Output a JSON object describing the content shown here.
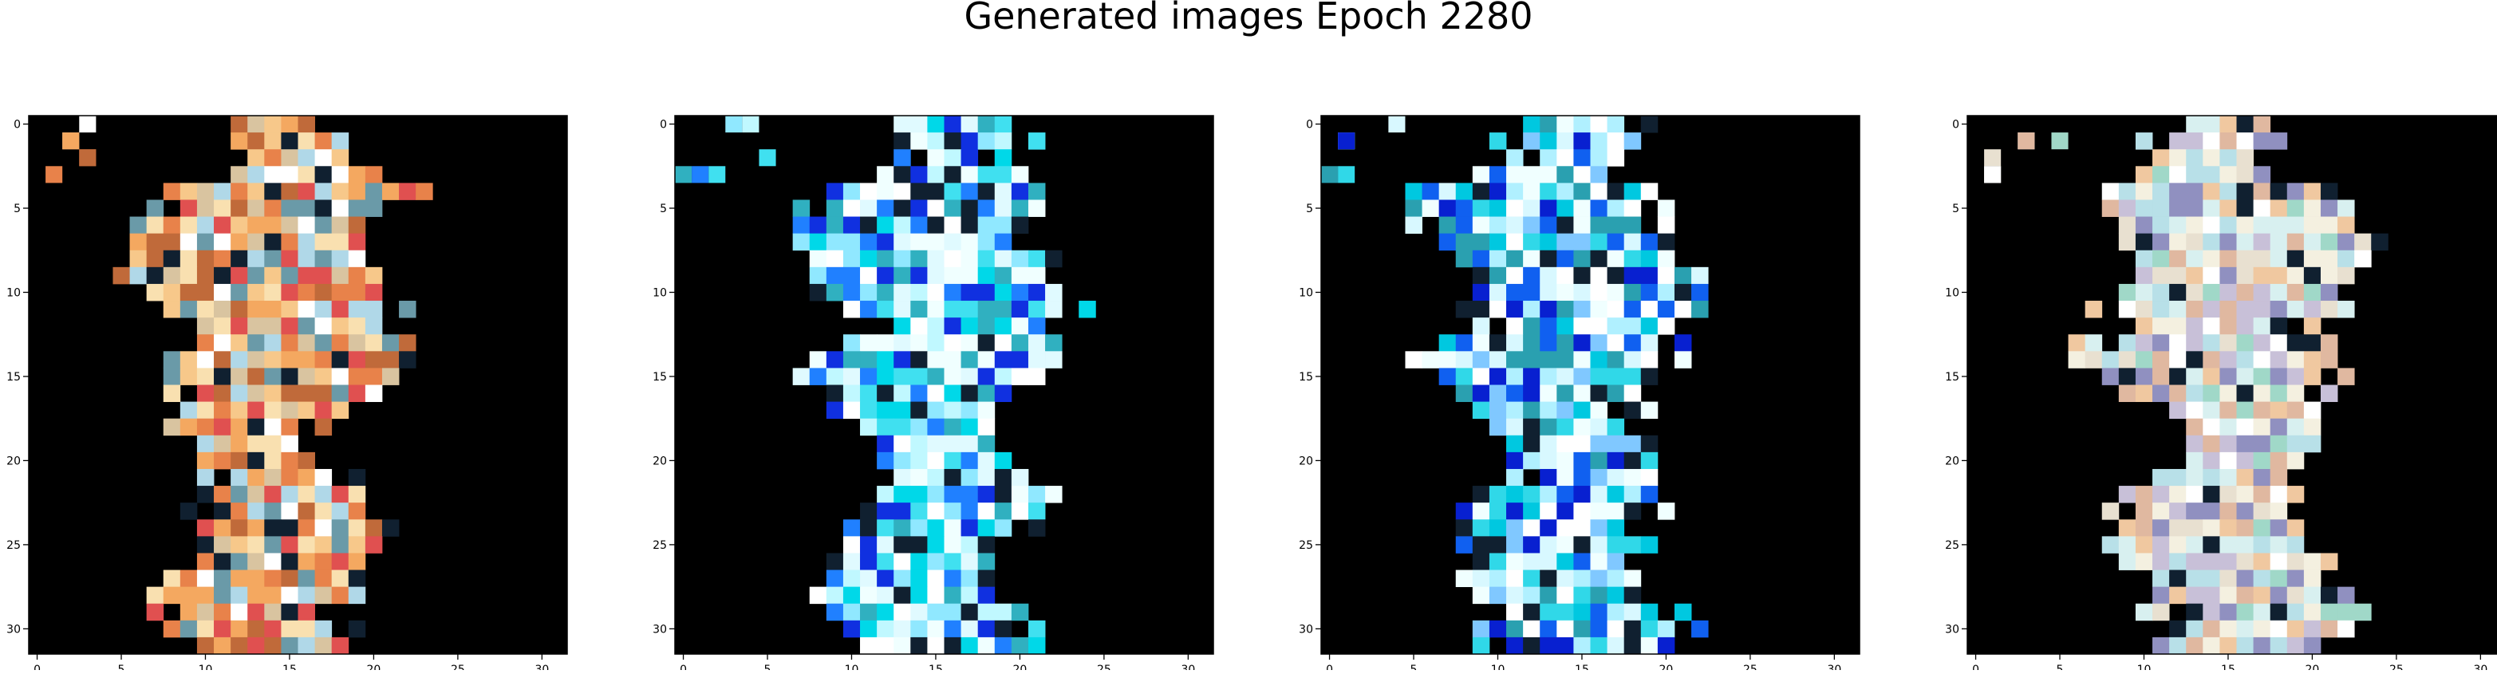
{
  "figure": {
    "title": "Generated images Epoch 2280"
  },
  "chart_data": [
    {
      "type": "heatmap",
      "title": "",
      "xlim": [
        -0.5,
        31.5
      ],
      "ylim": [
        31.5,
        -0.5
      ],
      "x_ticks": [
        0,
        5,
        10,
        15,
        20,
        25,
        30
      ],
      "y_ticks": [
        0,
        5,
        10,
        15,
        20,
        25,
        30
      ],
      "grid": false,
      "background": "#000000",
      "palette": [
        "#f4a860",
        "#f7c88a",
        "#e8824a",
        "#f9e0b0",
        "#d9c4a0",
        "#c06a3a",
        "#b0d8e8",
        "#ffffff",
        "#6a9aa8",
        "#e05050"
      ],
      "seed": 11
    },
    {
      "type": "heatmap",
      "title": "",
      "xlim": [
        -0.5,
        31.5
      ],
      "ylim": [
        31.5,
        -0.5
      ],
      "x_ticks": [
        0,
        5,
        10,
        15,
        20,
        25,
        30
      ],
      "y_ticks": [
        0,
        5,
        10,
        15,
        20,
        25,
        30
      ],
      "grid": false,
      "background": "#000000",
      "palette": [
        "#f0ffff",
        "#ffffff",
        "#e0faff",
        "#40e0f0",
        "#00d8e8",
        "#90e8ff",
        "#2080ff",
        "#1030e0",
        "#30b0c0",
        "#c0f8ff"
      ],
      "seed": 23
    },
    {
      "type": "heatmap",
      "title": "",
      "xlim": [
        -0.5,
        31.5
      ],
      "ylim": [
        31.5,
        -0.5
      ],
      "x_ticks": [
        0,
        5,
        10,
        15,
        20,
        25,
        30
      ],
      "y_ticks": [
        0,
        5,
        10,
        15,
        20,
        25,
        30
      ],
      "grid": false,
      "background": "#000000",
      "palette": [
        "#f0ffff",
        "#ffffff",
        "#d8f8ff",
        "#30d8e8",
        "#00c8e0",
        "#80c8ff",
        "#1060f0",
        "#0820d0",
        "#2aa0b0",
        "#b0f0ff"
      ],
      "seed": 37
    },
    {
      "type": "heatmap",
      "title": "",
      "xlim": [
        -0.5,
        31.5
      ],
      "ylim": [
        31.5,
        -0.5
      ],
      "x_ticks": [
        0,
        5,
        10,
        15,
        20,
        25,
        30
      ],
      "y_ticks": [
        0,
        5,
        10,
        15,
        20,
        25,
        30
      ],
      "grid": false,
      "background": "#000000",
      "palette": [
        "#f4f0e0",
        "#e8e0d0",
        "#d8f0f0",
        "#f0c8a0",
        "#c8c0d8",
        "#a0d8c8",
        "#ffffff",
        "#e0b8a0",
        "#b8e0e8",
        "#9090c0"
      ],
      "seed": 53
    }
  ]
}
